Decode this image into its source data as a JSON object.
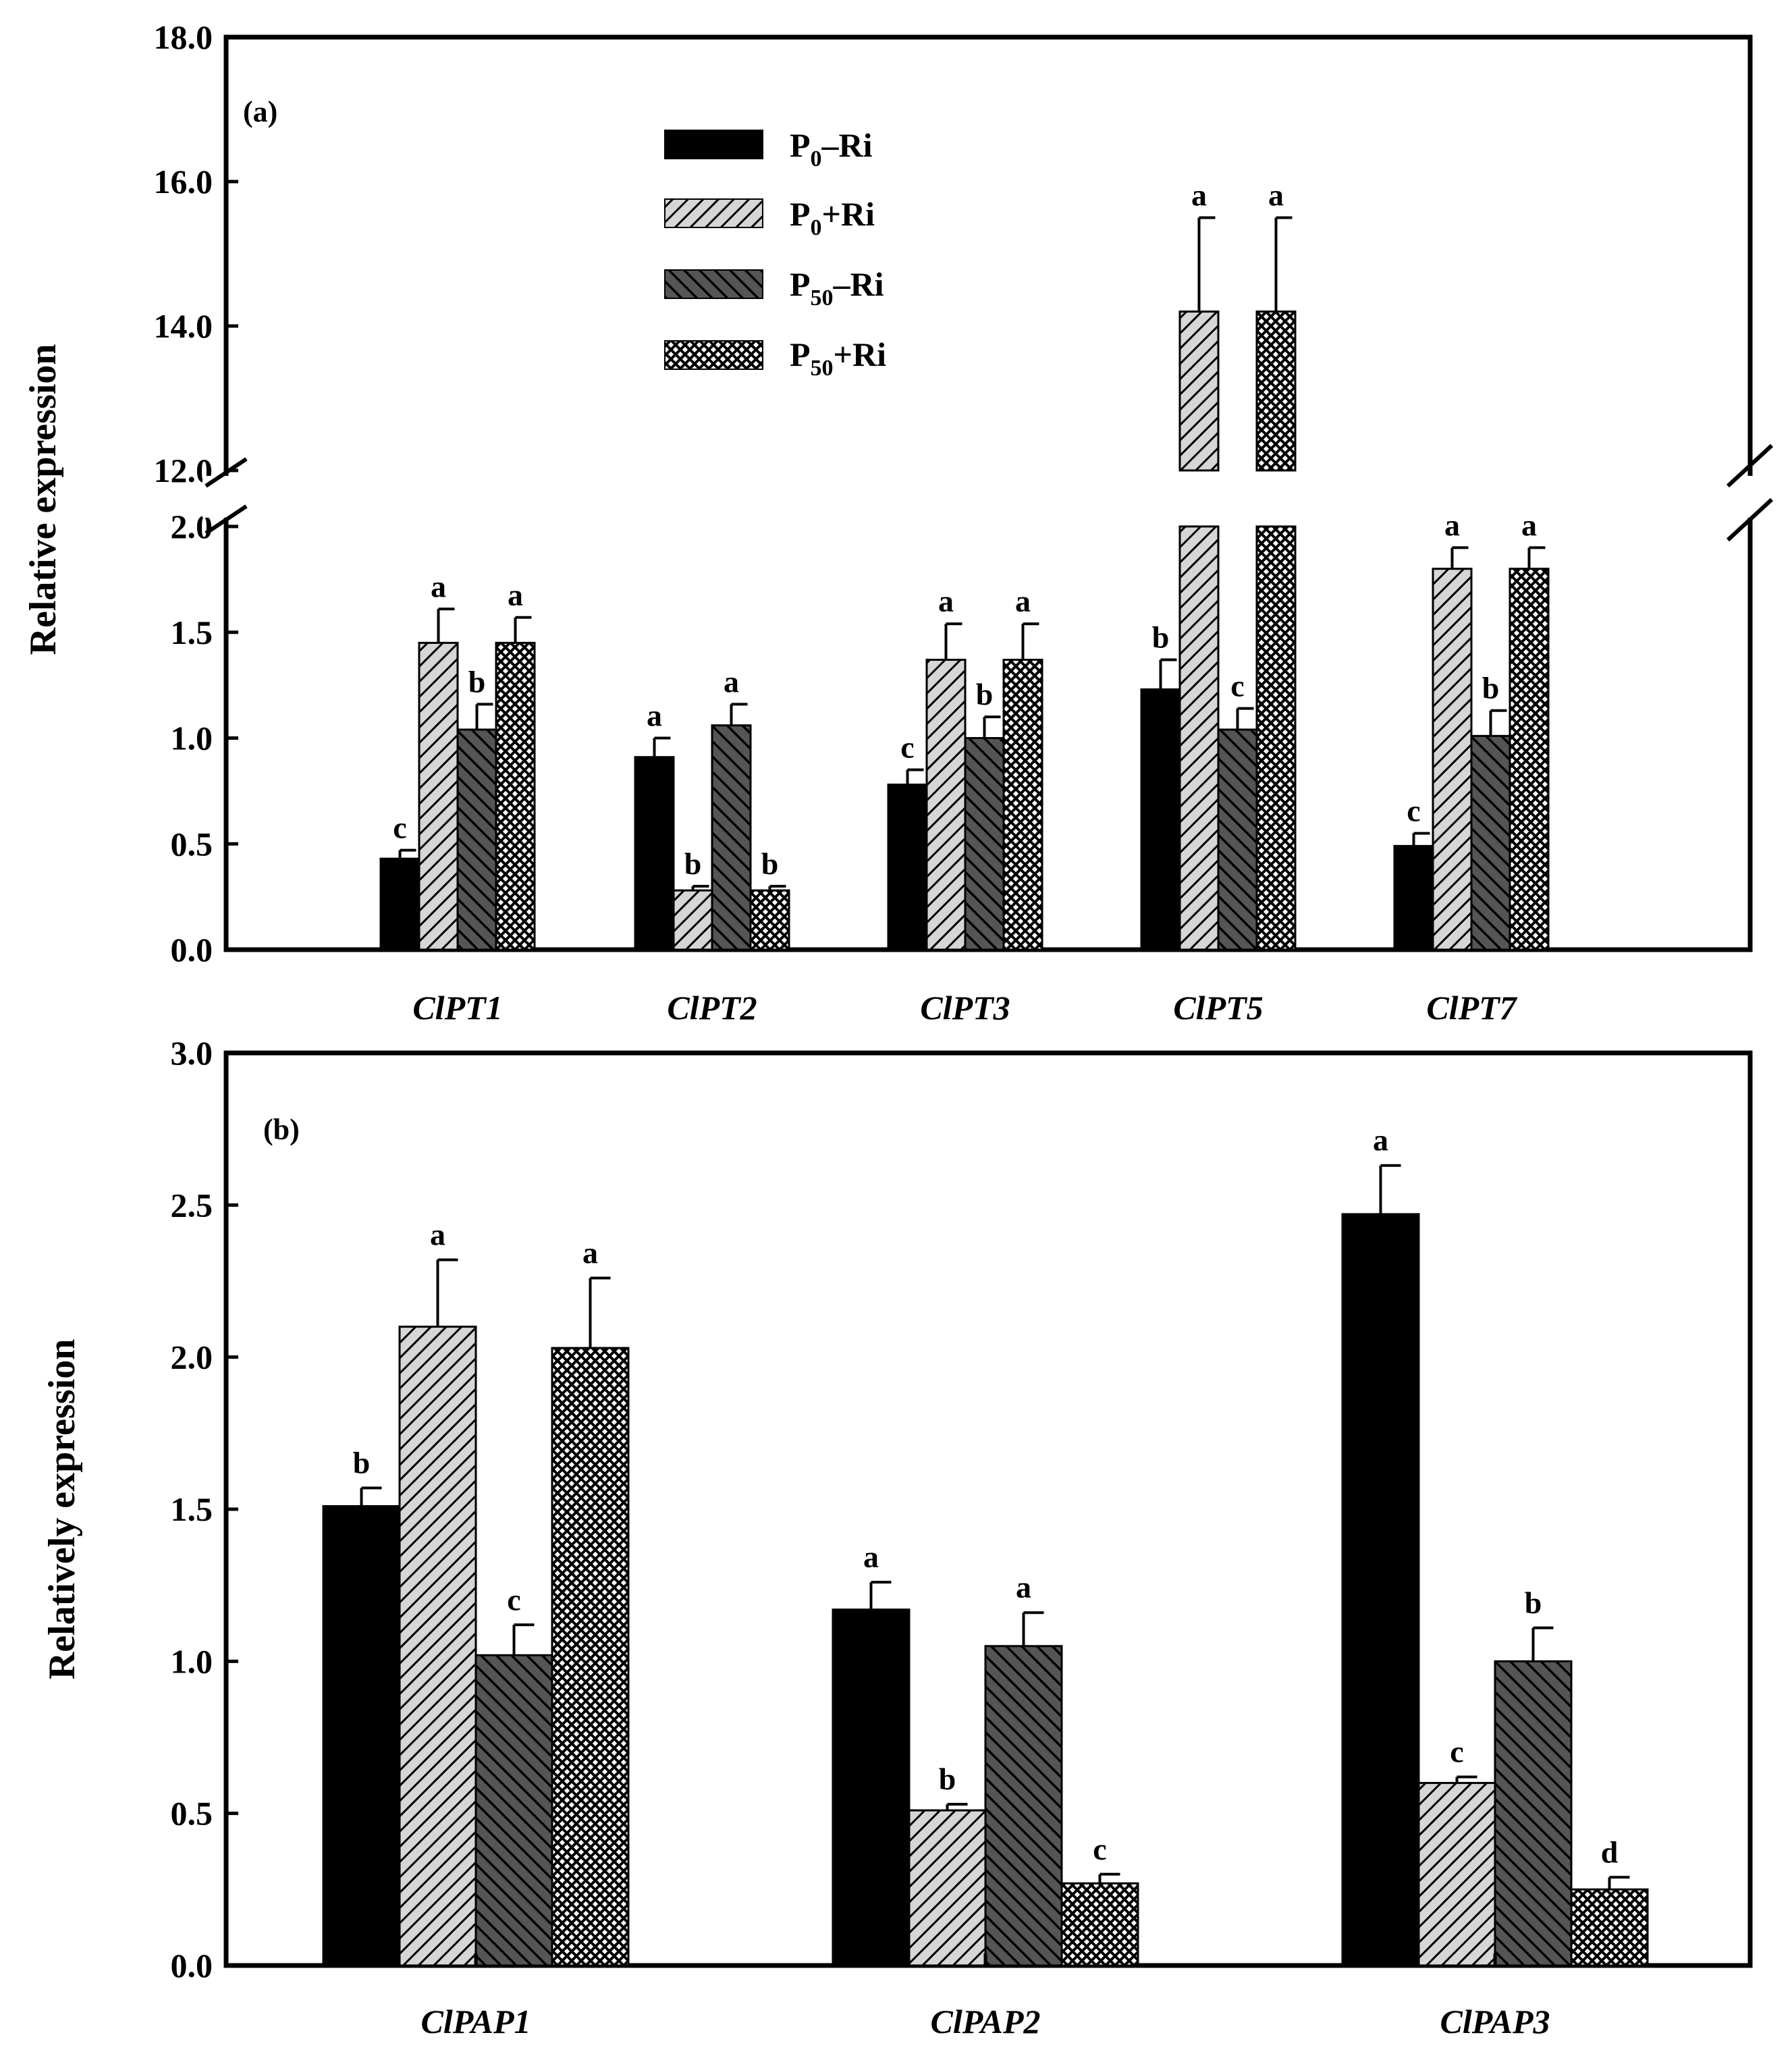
{
  "chart_data": [
    {
      "type": "bar",
      "panel_label": "(a)",
      "ylabel": "Relative expression",
      "categories": [
        "ClPT1",
        "ClPT2",
        "ClPT3",
        "ClPT5",
        "ClPT7"
      ],
      "y_axis_break": {
        "lower_range": [
          0,
          2.0
        ],
        "upper_range": [
          12.0,
          18.0
        ]
      },
      "lower_ticks": [
        "0.0",
        "0.5",
        "1.0",
        "1.5",
        "2.0"
      ],
      "upper_ticks": [
        "12.0",
        "14.0",
        "16.0",
        "18.0"
      ],
      "legend": {
        "position": "top-left",
        "entries": [
          {
            "base": "P",
            "sub": "0",
            "tail": "–Ri"
          },
          {
            "base": "P",
            "sub": "0",
            "tail": "+Ri"
          },
          {
            "base": "P",
            "sub": "50",
            "tail": "–Ri"
          },
          {
            "base": "P",
            "sub": "50",
            "tail": "+Ri"
          }
        ]
      },
      "series": [
        {
          "name": "P0–Ri",
          "pattern": "solid",
          "values": [
            0.43,
            0.91,
            0.78,
            1.23,
            0.49
          ],
          "errors": [
            0.04,
            0.09,
            0.07,
            0.14,
            0.06
          ],
          "letters": [
            "c",
            "a",
            "c",
            "b",
            "c"
          ]
        },
        {
          "name": "P0+Ri",
          "pattern": "hatch-light",
          "values": [
            1.45,
            0.28,
            1.37,
            14.2,
            1.8
          ],
          "errors": [
            0.16,
            0.02,
            0.17,
            1.3,
            0.1
          ],
          "letters": [
            "a",
            "b",
            "a",
            "a",
            "a"
          ]
        },
        {
          "name": "P50–Ri",
          "pattern": "hatch-dark",
          "values": [
            1.04,
            1.06,
            1.0,
            1.04,
            1.01
          ],
          "errors": [
            0.12,
            0.1,
            0.1,
            0.1,
            0.12
          ],
          "letters": [
            "b",
            "a",
            "b",
            "c",
            "b"
          ]
        },
        {
          "name": "P50+Ri",
          "pattern": "crosshatch",
          "values": [
            1.45,
            0.28,
            1.37,
            14.2,
            1.8
          ],
          "errors": [
            0.12,
            0.02,
            0.17,
            1.3,
            0.1
          ],
          "letters": [
            "a",
            "b",
            "a",
            "a",
            "a"
          ]
        }
      ]
    },
    {
      "type": "bar",
      "panel_label": "(b)",
      "ylabel": "Relatively expression",
      "categories": [
        "ClPAP1",
        "ClPAP2",
        "ClPAP3"
      ],
      "ylim": [
        0,
        3.0
      ],
      "ticks": [
        "0.0",
        "0.5",
        "1.0",
        "1.5",
        "2.0",
        "2.5",
        "3.0"
      ],
      "series": [
        {
          "name": "P0–Ri",
          "pattern": "solid",
          "values": [
            1.51,
            1.17,
            2.47
          ],
          "errors": [
            0.06,
            0.09,
            0.16
          ],
          "letters": [
            "b",
            "a",
            "a"
          ]
        },
        {
          "name": "P0+Ri",
          "pattern": "hatch-light",
          "values": [
            2.1,
            0.51,
            0.6
          ],
          "errors": [
            0.22,
            0.02,
            0.02
          ],
          "letters": [
            "a",
            "b",
            "c"
          ]
        },
        {
          "name": "P50–Ri",
          "pattern": "hatch-dark",
          "values": [
            1.02,
            1.05,
            1.0
          ],
          "errors": [
            0.1,
            0.11,
            0.11
          ],
          "letters": [
            "c",
            "a",
            "b"
          ]
        },
        {
          "name": "P50+Ri",
          "pattern": "crosshatch",
          "values": [
            2.03,
            0.27,
            0.25
          ],
          "errors": [
            0.23,
            0.03,
            0.04
          ],
          "letters": [
            "a",
            "c",
            "d"
          ]
        }
      ]
    }
  ]
}
